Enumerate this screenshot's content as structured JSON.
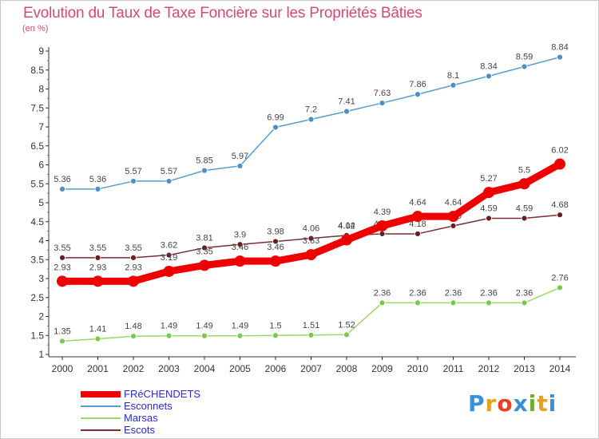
{
  "header": {
    "title": "Evolution du Taux de Taxe Foncière sur les Propriétés Bâties",
    "subtitle": "(en %)"
  },
  "logo": {
    "text": "Proxiti",
    "colors": [
      "#3a8fd6",
      "#e8a020",
      "#e84020",
      "#3a8fd6",
      "#70b030",
      "#e8a020",
      "#3a8fd6"
    ]
  },
  "chart_data": {
    "type": "line",
    "title": "Evolution du Taux de Taxe Foncière sur les Propriétés Bâties",
    "ylabel": "(en %)",
    "x": [
      "2000",
      "2001",
      "2002",
      "2003",
      "2004",
      "2005",
      "2006",
      "2007",
      "2008",
      "2009",
      "2010",
      "2011",
      "2012",
      "2013",
      "2014"
    ],
    "ylim": [
      1,
      9
    ],
    "yticks": [
      "1",
      "1.5",
      "2",
      "2.5",
      "3",
      "3.5",
      "4",
      "4.5",
      "5",
      "5.5",
      "6",
      "6.5",
      "7",
      "7.5",
      "8",
      "8.5",
      "9"
    ],
    "grid": false,
    "legend_position": "bottom-left",
    "series": [
      {
        "name": "Esconnets",
        "color": "#5b9bd0",
        "point_color": "#4f8fc8",
        "values": [
          5.36,
          5.36,
          5.57,
          5.57,
          5.85,
          5.97,
          6.99,
          7.2,
          7.41,
          7.63,
          7.86,
          8.1,
          8.34,
          8.59,
          8.84
        ],
        "labels": [
          "5.36",
          "5.36",
          "5.57",
          "5.57",
          "5.85",
          "5.97",
          "6.99",
          "7.2",
          "7.41",
          "7.63",
          "7.86",
          "8.1",
          "8.34",
          "8.59",
          "8.84"
        ]
      },
      {
        "name": "Escots",
        "color": "#7a2e32",
        "point_color": "#6a1e22",
        "values": [
          3.55,
          3.55,
          3.55,
          3.62,
          3.81,
          3.9,
          3.98,
          4.06,
          4.14,
          4.18,
          4.18,
          4.39,
          4.59,
          4.59,
          4.68
        ],
        "labels": [
          "3.55",
          "3.55",
          "3.55",
          "3.62",
          "3.81",
          "3.9",
          "3.98",
          "4.06",
          "4.14",
          "4.18",
          "4.18",
          "4.39",
          "4.59",
          "4.59",
          "4.68"
        ]
      },
      {
        "name": "Marsas",
        "color": "#9ad86a",
        "point_color": "#7cc84a",
        "values": [
          1.35,
          1.41,
          1.48,
          1.49,
          1.49,
          1.49,
          1.5,
          1.51,
          1.52,
          2.36,
          2.36,
          2.36,
          2.36,
          2.36,
          2.76
        ],
        "labels": [
          "1.35",
          "1.41",
          "1.48",
          "1.49",
          "1.49",
          "1.49",
          "1.5",
          "1.51",
          "1.52",
          "2.36",
          "2.36",
          "2.36",
          "2.36",
          "2.36",
          "2.76"
        ]
      },
      {
        "name": "FRéCHENDETS",
        "color": "#ee0000",
        "point_color": "#ee0000",
        "highlight": true,
        "values": [
          2.93,
          2.93,
          2.93,
          3.19,
          3.35,
          3.46,
          3.46,
          3.63,
          4.02,
          4.39,
          4.64,
          4.64,
          5.27,
          5.5,
          6.02
        ],
        "labels": [
          "2.93",
          "2.93",
          "2.93",
          "3.19",
          "3.35",
          "3.46",
          "3.46",
          "3.63",
          "4.02",
          "4.39",
          "4.64",
          "4.64",
          "5.27",
          "5.5",
          "6.02"
        ]
      }
    ],
    "legend": [
      "FRéCHENDETS",
      "Esconnets",
      "Marsas",
      "Escots"
    ]
  }
}
